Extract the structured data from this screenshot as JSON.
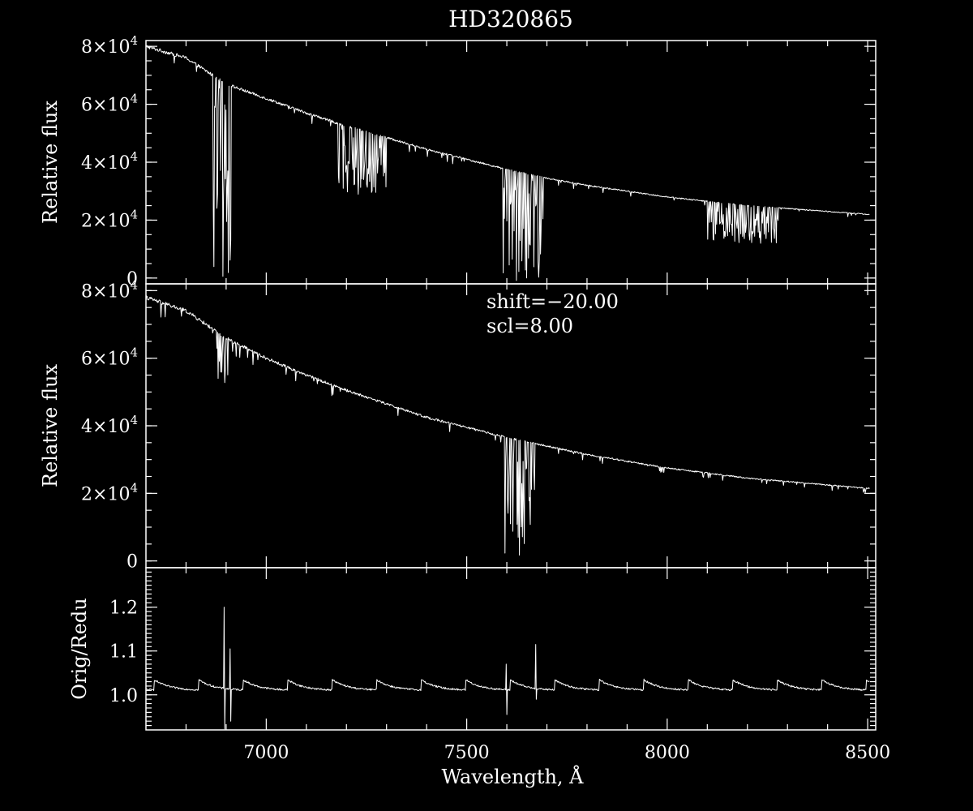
{
  "chart_data": {
    "type": "line",
    "title": "HD320865",
    "xlabel": "Wavelength, Å",
    "xlim": [
      6700,
      8520
    ],
    "xticks": [
      7000,
      7500,
      8000,
      8500
    ],
    "xtick_labels": [
      "7000",
      "7500",
      "8000",
      "8500"
    ],
    "panels": [
      {
        "id": "original",
        "ylabel": "Relative flux",
        "ylim": [
          -2000,
          82000
        ],
        "yticks": [
          0,
          20000,
          40000,
          60000,
          80000
        ],
        "ytick_labels": [
          {
            "mant": "0",
            "exp": ""
          },
          {
            "mant": "2×10",
            "exp": "4"
          },
          {
            "mant": "4×10",
            "exp": "4"
          },
          {
            "mant": "6×10",
            "exp": "4"
          },
          {
            "mant": "8×10",
            "exp": "4"
          }
        ],
        "continuum": [
          [
            6700,
            80000
          ],
          [
            6800,
            76000
          ],
          [
            6900,
            67000
          ],
          [
            7000,
            62000
          ],
          [
            7100,
            57000
          ],
          [
            7200,
            52500
          ],
          [
            7300,
            48500
          ],
          [
            7400,
            44500
          ],
          [
            7500,
            41000
          ],
          [
            7600,
            37500
          ],
          [
            7700,
            34500
          ],
          [
            7800,
            32000
          ],
          [
            7900,
            30000
          ],
          [
            8000,
            28000
          ],
          [
            8100,
            26500
          ],
          [
            8200,
            25000
          ],
          [
            8300,
            24000
          ],
          [
            8400,
            23000
          ],
          [
            8500,
            22000
          ]
        ],
        "bands": [
          {
            "start": 6868,
            "end": 6915,
            "min": 500
          },
          {
            "start": 7180,
            "end": 7300,
            "min": 28000
          },
          {
            "start": 7590,
            "end": 7690,
            "min": -1000
          },
          {
            "start": 8100,
            "end": 8280,
            "min": 12000
          }
        ]
      },
      {
        "id": "reduced",
        "ylabel": "Relative flux",
        "ylim": [
          -2000,
          82000
        ],
        "yticks": [
          0,
          20000,
          40000,
          60000,
          80000
        ],
        "ytick_labels": [
          {
            "mant": "0",
            "exp": ""
          },
          {
            "mant": "2×10",
            "exp": "4"
          },
          {
            "mant": "4×10",
            "exp": "4"
          },
          {
            "mant": "6×10",
            "exp": "4"
          },
          {
            "mant": "8×10",
            "exp": "4"
          }
        ],
        "annotations": [
          "shift=−20.00",
          "scl=8.00"
        ],
        "continuum": [
          [
            6700,
            78000
          ],
          [
            6800,
            74000
          ],
          [
            6900,
            66000
          ],
          [
            7000,
            60000
          ],
          [
            7100,
            55000
          ],
          [
            7200,
            50500
          ],
          [
            7300,
            46500
          ],
          [
            7400,
            42500
          ],
          [
            7500,
            39500
          ],
          [
            7600,
            36500
          ],
          [
            7700,
            34000
          ],
          [
            7800,
            31500
          ],
          [
            7900,
            29500
          ],
          [
            8000,
            27500
          ],
          [
            8100,
            26000
          ],
          [
            8200,
            24500
          ],
          [
            8300,
            23500
          ],
          [
            8400,
            22500
          ],
          [
            8500,
            21500
          ]
        ],
        "bands": [
          {
            "start": 6868,
            "end": 6872,
            "min": 25000
          },
          {
            "start": 6875,
            "end": 6905,
            "min": 52000
          },
          {
            "start": 7595,
            "end": 7670,
            "min": 500
          }
        ]
      },
      {
        "id": "ratio",
        "ylabel": "Orig/Redu",
        "ylim": [
          0.92,
          1.29
        ],
        "yticks": [
          1.0,
          1.1,
          1.2
        ],
        "ytick_labels": [
          {
            "mant": "1.0",
            "exp": ""
          },
          {
            "mant": "1.1",
            "exp": ""
          },
          {
            "mant": "1.2",
            "exp": ""
          }
        ],
        "baseline": 1.01,
        "cycle_start": 6720,
        "cycle_period": 111,
        "cycle_amplitude": 0.025,
        "spikes": [
          {
            "x": 6895,
            "max": 1.2,
            "min": 0.92
          },
          {
            "x": 6910,
            "max": 1.105,
            "min": 0.94
          },
          {
            "x": 7598,
            "max": 1.07,
            "min": 0.955
          },
          {
            "x": 7672,
            "max": 1.115,
            "min": 0.99
          }
        ]
      }
    ]
  }
}
